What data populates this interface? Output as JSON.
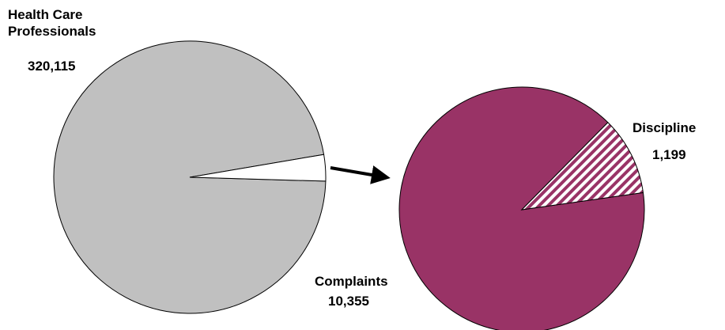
{
  "chart_data": {
    "type": "pie-of-pie",
    "main": {
      "name": "Health Care Professionals",
      "value": 320115,
      "value_label": "320,115",
      "color": "#c0c0c0"
    },
    "sub": [
      {
        "name": "Complaints",
        "value": 10355,
        "value_label": "10,355",
        "color": "#993366"
      },
      {
        "name": "Discipline",
        "value": 1199,
        "value_label": "1,199",
        "color": "#993366",
        "pattern": "hatched"
      }
    ]
  }
}
